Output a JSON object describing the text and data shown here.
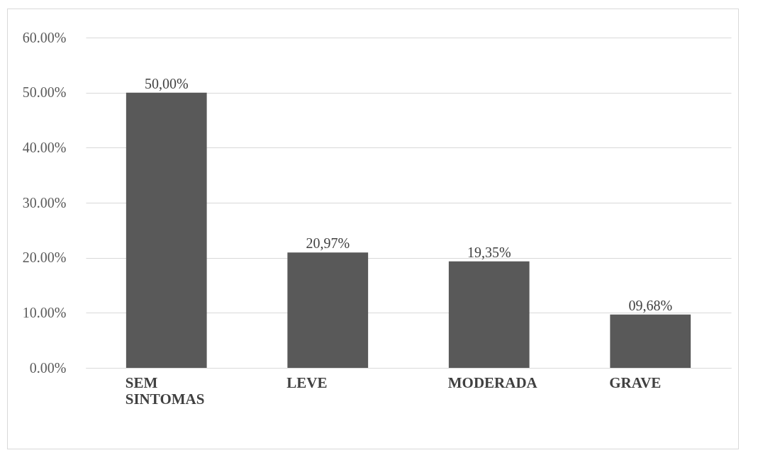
{
  "chart_data": {
    "type": "bar",
    "categories": [
      "SEM SINTOMAS",
      "LEVE",
      "MODERADA",
      "GRAVE"
    ],
    "values": [
      50,
      20.97,
      19.35,
      9.68
    ],
    "value_labels": [
      "50,00%",
      "20,97%",
      "19,35%",
      "09,68%"
    ],
    "color": "#595959",
    "ylim": [
      0,
      60
    ],
    "yticks": [
      {
        "value": 0,
        "label": "0.00%"
      },
      {
        "value": 10,
        "label": "10.00%"
      },
      {
        "value": 20,
        "label": "20.00%"
      },
      {
        "value": 30,
        "label": "30.00%"
      },
      {
        "value": 40,
        "label": "40.00%"
      },
      {
        "value": 50,
        "label": "50.00%"
      },
      {
        "value": 60,
        "label": "60.00%"
      }
    ],
    "grid": "y"
  }
}
